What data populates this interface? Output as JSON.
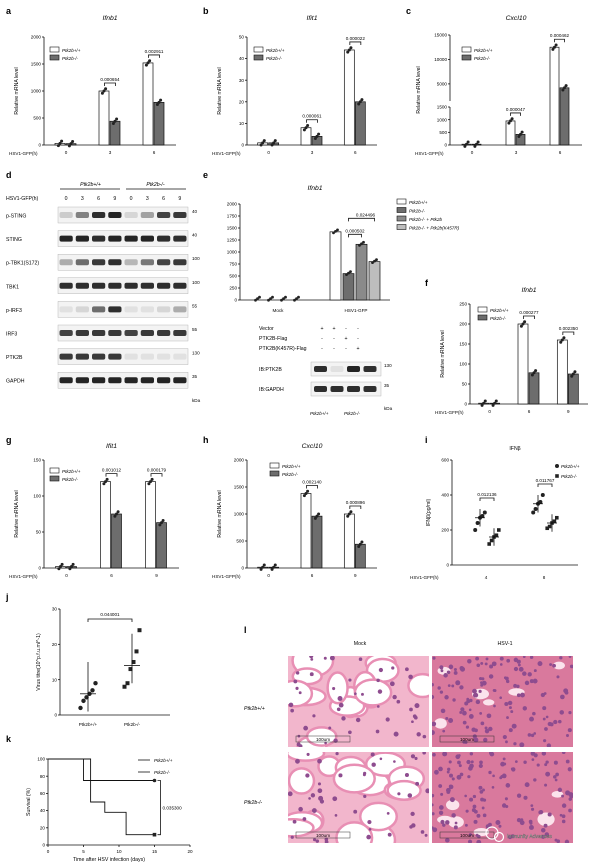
{
  "panel_letters": [
    "a",
    "b",
    "c",
    "d",
    "e",
    "f",
    "g",
    "h",
    "i",
    "j",
    "k",
    "l"
  ],
  "colors": {
    "wt_bar": "#ffffff",
    "ko_bar": "#6d6d6d",
    "ko_rescue": "#bdbdbd",
    "point": "#222222",
    "tissue_pink": "#e88fb4",
    "tissue_purple": "#8e4c8f"
  },
  "qpcr_ylabel": "Relative mRNA level",
  "hsv_label": "HSV1-GFP(h)",
  "legend_wt": "Ptk2b+/+",
  "legend_ko": "Ptk2b-/-",
  "chart_data": [
    {
      "panel": "a",
      "type": "bar",
      "title": "Ifnb1",
      "xlabel": "HSV1-GFP(h)",
      "ylabel": "Relative mRNA level",
      "categories": [
        "0",
        "3",
        "6"
      ],
      "ylim": [
        0,
        2000
      ],
      "yticks": [
        "0",
        "500",
        "1000",
        "1500",
        "2000"
      ],
      "series": [
        {
          "name": "Ptk2b+/+",
          "values": [
            30,
            1000,
            1520
          ]
        },
        {
          "name": "Ptk2b-/-",
          "values": [
            25,
            440,
            790
          ]
        }
      ],
      "pvalues": [
        {
          "label": "0.000654",
          "at": "3"
        },
        {
          "label": "0.002911",
          "at": "6"
        }
      ]
    },
    {
      "panel": "b",
      "type": "bar",
      "title": "Ifit1",
      "xlabel": "HSV1-GFP(h)",
      "ylabel": "Relative mRNA level",
      "categories": [
        "0",
        "3",
        "6"
      ],
      "ylim": [
        0,
        50
      ],
      "yticks": [
        "0",
        "10",
        "20",
        "30",
        "40",
        "50"
      ],
      "series": [
        {
          "name": "Ptk2b+/+",
          "values": [
            1,
            8,
            44
          ]
        },
        {
          "name": "Ptk2b-/-",
          "values": [
            1,
            4,
            20
          ]
        }
      ],
      "pvalues": [
        {
          "label": "0.000061",
          "at": "3"
        },
        {
          "label": "0.000022",
          "at": "6"
        }
      ]
    },
    {
      "panel": "c",
      "type": "bar",
      "title": "Cxcl10",
      "xlabel": "HSV1-GFP(h)",
      "ylabel": "Relative mRNA level",
      "categories": [
        "0",
        "3",
        "6"
      ],
      "axis_break": true,
      "ylim": [
        0,
        15000
      ],
      "yticks": [
        "0",
        "500",
        "1000",
        "1500",
        "5000",
        "10000",
        "15000"
      ],
      "series": [
        {
          "name": "Ptk2b+/+",
          "values": [
            20,
            950,
            12500
          ]
        },
        {
          "name": "Ptk2b-/-",
          "values": [
            20,
            420,
            4200
          ]
        }
      ],
      "pvalues": [
        {
          "label": "0.000047",
          "at": "3"
        },
        {
          "label": "0.000462",
          "at": "6"
        }
      ]
    },
    {
      "panel": "e",
      "type": "bar",
      "title": "Ifnb1",
      "ylabel": "",
      "ylim": [
        0,
        2000
      ],
      "yticks": [
        "0",
        "250",
        "500",
        "750",
        "1000",
        "1250",
        "1500",
        "1750",
        "2000"
      ],
      "groups": [
        "Mock",
        "HSV1-GFP"
      ],
      "series": [
        {
          "name": "Ptk2b+/+",
          "values": [
            5,
            1420
          ]
        },
        {
          "name": "Ptk2b-/-",
          "values": [
            5,
            550
          ]
        },
        {
          "name": "Ptk2b-/- + Ptk2b",
          "values": [
            5,
            1160
          ]
        },
        {
          "name": "Ptk2b-/- + Ptk2b(K457R)",
          "values": [
            5,
            800
          ]
        }
      ],
      "pvalues": [
        "0.000502",
        "0.024496"
      ]
    },
    {
      "panel": "f",
      "type": "bar",
      "title": "Ifnb1",
      "xlabel": "HSV1-GFP(h)",
      "ylabel": "Relative mRNA level",
      "categories": [
        "0",
        "6",
        "9"
      ],
      "ylim": [
        0,
        250
      ],
      "yticks": [
        "0",
        "50",
        "100",
        "150",
        "200",
        "250"
      ],
      "series": [
        {
          "name": "Ptk2b+/+",
          "values": [
            2,
            200,
            160
          ]
        },
        {
          "name": "Ptk2b-/-",
          "values": [
            2,
            78,
            75
          ]
        }
      ],
      "pvalues": [
        {
          "label": "0.000277",
          "at": "6"
        },
        {
          "label": "0.002350",
          "at": "9"
        }
      ]
    },
    {
      "panel": "g",
      "type": "bar",
      "title": "Ifit1",
      "xlabel": "HSV1-GFP(h)",
      "ylabel": "Relative mRNA level",
      "categories": [
        "0",
        "6",
        "9"
      ],
      "ylim": [
        0,
        150
      ],
      "yticks": [
        "0",
        "50",
        "100",
        "150"
      ],
      "series": [
        {
          "name": "Ptk2b+/+",
          "values": [
            2,
            120,
            120
          ]
        },
        {
          "name": "Ptk2b-/-",
          "values": [
            2,
            75,
            63
          ]
        }
      ],
      "pvalues": [
        {
          "label": "0.001012",
          "at": "6"
        },
        {
          "label": "0.000179",
          "at": "9"
        }
      ]
    },
    {
      "panel": "h",
      "type": "bar",
      "title": "Cxcl10",
      "xlabel": "HSV1-GFP(h)",
      "ylabel": "Relative mRNA level",
      "categories": [
        "0",
        "6",
        "9"
      ],
      "ylim": [
        0,
        2000
      ],
      "yticks": [
        "0",
        "500",
        "1000",
        "1500",
        "2000"
      ],
      "series": [
        {
          "name": "Ptk2b+/+",
          "values": [
            10,
            1380,
            1000
          ]
        },
        {
          "name": "Ptk2b-/-",
          "values": [
            10,
            960,
            440
          ]
        }
      ],
      "pvalues": [
        {
          "label": "0.002140",
          "at": "6"
        },
        {
          "label": "0.000896",
          "at": "9"
        }
      ]
    },
    {
      "panel": "i",
      "type": "scatter",
      "title": "IFNβ",
      "xlabel": "HSV1-GFP(h)",
      "ylabel": "IFNβ(pg/ml)",
      "categories": [
        "4",
        "8"
      ],
      "ylim": [
        0,
        600
      ],
      "yticks": [
        "0",
        "200",
        "400",
        "600"
      ],
      "series": [
        {
          "name": "Ptk2b+/+",
          "means": [
            270,
            350
          ],
          "points": [
            [
              200,
              240,
              270,
              280,
              300
            ],
            [
              300,
              320,
              350,
              360,
              400
            ]
          ]
        },
        {
          "name": "Ptk2b-/-",
          "means": [
            160,
            240
          ],
          "points": [
            [
              120,
              140,
              160,
              170,
              200
            ],
            [
              210,
              220,
              240,
              250,
              270
            ]
          ]
        }
      ],
      "pvalues": [
        "0.012136",
        "0.011767"
      ]
    },
    {
      "panel": "j",
      "type": "scatter",
      "xlabel": "",
      "ylabel": "Virus titre(10^p.f.u.ml^-1)",
      "categories": [
        "Ptk2b+/+",
        "Ptk2b-/-"
      ],
      "ylim": [
        0,
        30
      ],
      "yticks": [
        "0",
        "10",
        "20",
        "30"
      ],
      "series": [
        {
          "name": "Ptk2b+/+",
          "mean": 6,
          "points": [
            2,
            4,
            5,
            6,
            7,
            9
          ]
        },
        {
          "name": "Ptk2b-/-",
          "mean": 14,
          "points": [
            8,
            9,
            13,
            15,
            18,
            24
          ]
        }
      ],
      "pvalues": [
        "0.044001"
      ]
    },
    {
      "panel": "k",
      "type": "line",
      "xlabel": "Time after HSV infection (days)",
      "ylabel": "Survival (%)",
      "xlim": [
        0,
        20
      ],
      "ylim": [
        0,
        100
      ],
      "xticks": [
        "0",
        "5",
        "10",
        "15",
        "20"
      ],
      "yticks": [
        "0",
        "20",
        "40",
        "60",
        "80",
        "100"
      ],
      "series": [
        {
          "name": "Ptk2b+/+",
          "steps": [
            [
              0,
              100
            ],
            [
              6,
              100
            ],
            [
              6,
              75
            ],
            [
              15,
              75
            ]
          ]
        },
        {
          "name": "Ptk2b-/-",
          "steps": [
            [
              0,
              100
            ],
            [
              5,
              100
            ],
            [
              5,
              75
            ],
            [
              6,
              75
            ],
            [
              6,
              50
            ],
            [
              8,
              50
            ],
            [
              8,
              38
            ],
            [
              11,
              38
            ],
            [
              11,
              12
            ],
            [
              15,
              12
            ]
          ]
        }
      ],
      "pvalues": [
        "0.035300"
      ]
    }
  ],
  "western_d": {
    "genotypes": [
      "Ptk2b+/+",
      "Ptk2b-/-"
    ],
    "times": [
      "0",
      "3",
      "6",
      "9",
      "0",
      "3",
      "6",
      "9"
    ],
    "rows": [
      {
        "label": "p-STING",
        "mw": "40"
      },
      {
        "label": "STING",
        "mw": "40"
      },
      {
        "label": "p-TBK1(S172)",
        "mw": "100"
      },
      {
        "label": "TBK1",
        "mw": "100"
      },
      {
        "label": "p-IRF3",
        "mw": "55"
      },
      {
        "label": "IRF3",
        "mw": "55"
      },
      {
        "label": "PTK2B",
        "mw": "130"
      },
      {
        "label": "GAPDH",
        "mw": "35"
      }
    ],
    "unit": "kDa"
  },
  "western_e": {
    "conditions": [
      {
        "label": "Vector",
        "marks": [
          "+",
          "+",
          "-",
          "-"
        ]
      },
      {
        "label": "PTK2B-Flag",
        "marks": [
          "-",
          "-",
          "+",
          "-"
        ]
      },
      {
        "label": "PTK2B(K457R)-Flag",
        "marks": [
          "-",
          "-",
          "-",
          "+"
        ]
      }
    ],
    "rows": [
      {
        "label": "IB:PTK2B",
        "mw": "130"
      },
      {
        "label": "IB:GAPDH",
        "mw": "35"
      }
    ],
    "genotypes": [
      "Ptk2b+/+",
      "Ptk2b-/-"
    ],
    "unit": "kDa",
    "x_groups": [
      "Mock",
      "HSV1-GFP"
    ]
  },
  "histology_l": {
    "columns": [
      "Mock",
      "HSV-1"
    ],
    "rows": [
      "Ptk2b+/+",
      "Ptk2b-/-"
    ],
    "scale": "100um"
  },
  "watermark": "Immunity Advances"
}
